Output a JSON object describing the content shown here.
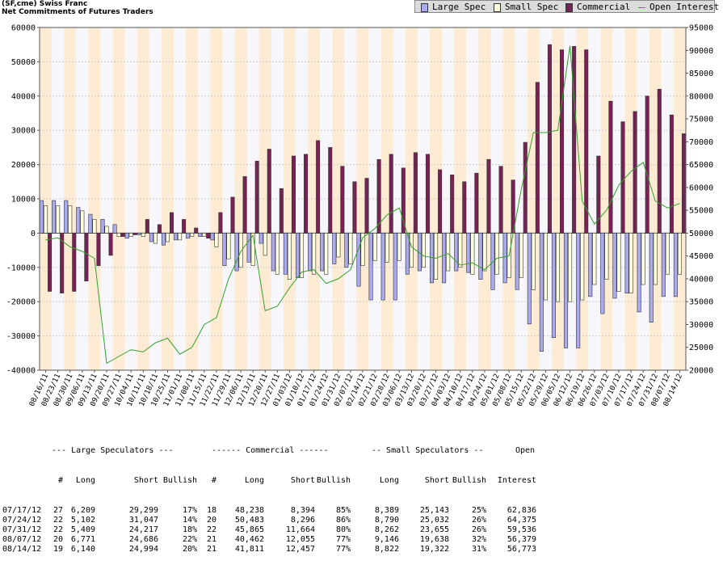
{
  "header": {
    "line1": "(SF,cme) Swiss Franc",
    "line2": "Net Commitments of Futures Traders"
  },
  "legend": [
    {
      "label": "Large Spec",
      "color": "#aaaaee",
      "kind": "bar"
    },
    {
      "label": "Small Spec",
      "color": "#ffffdd",
      "kind": "bar"
    },
    {
      "label": "Commercial",
      "color": "#772255",
      "kind": "bar"
    },
    {
      "label": "Open Interest",
      "color": "#33a02c",
      "kind": "line"
    }
  ],
  "chart_data": {
    "type": "bar",
    "categories": [
      "08/16/11",
      "08/23/11",
      "08/30/11",
      "09/06/11",
      "09/13/11",
      "09/20/11",
      "09/27/11",
      "10/04/11",
      "10/11/11",
      "10/18/11",
      "10/25/11",
      "11/01/11",
      "11/08/11",
      "11/15/11",
      "11/22/11",
      "11/29/11",
      "12/06/11",
      "12/13/11",
      "12/20/11",
      "12/27/11",
      "01/03/12",
      "01/10/12",
      "01/17/12",
      "01/24/12",
      "01/31/12",
      "02/07/12",
      "02/14/12",
      "02/21/12",
      "02/28/12",
      "03/06/12",
      "03/13/12",
      "03/20/12",
      "03/27/12",
      "04/03/12",
      "04/10/12",
      "04/17/12",
      "04/24/12",
      "05/01/12",
      "05/08/12",
      "05/15/12",
      "05/22/12",
      "05/29/12",
      "06/05/12",
      "06/12/12",
      "06/19/12",
      "06/26/12",
      "07/03/12",
      "07/10/12",
      "07/17/12",
      "07/24/12",
      "07/31/12",
      "08/07/12",
      "08/14/12"
    ],
    "x_tick_labels": [
      "08/16/11",
      "08/23/11",
      "08/30/11",
      "09/06/11",
      "09/13/11",
      "09/20/11",
      "09/27/11",
      "10/04/11",
      "10/11/11",
      "10/18/11",
      "10/25/11",
      "11/01/11",
      "11/08/11",
      "11/15/11",
      "11/22/11",
      "11/29/11",
      "12/06/11",
      "12/13/11",
      "12/20/11",
      "12/27/11",
      "01/03/12",
      "01/10/12",
      "01/17/12",
      "01/24/12",
      "01/31/12",
      "02/07/12",
      "02/14/12",
      "02/21/12",
      "02/28/12",
      "03/06/12",
      "03/13/12",
      "03/20/12",
      "03/27/12",
      "04/03/12",
      "04/10/12",
      "04/17/12",
      "04/24/12",
      "05/01/12",
      "05/08/12",
      "05/15/12",
      "05/22/12",
      "05/29/12",
      "06/05/12",
      "06/12/12",
      "06/19/12",
      "06/26/12",
      "07/03/12",
      "07/10/12",
      "07/17/12",
      "07/24/12",
      "07/31/12",
      "08/07/12",
      "08/14/12"
    ],
    "y_left_ticks": [
      "60000",
      "50000",
      "40000",
      "30000",
      "20000",
      "10000",
      "0",
      "-10000",
      "-20000",
      "-30000",
      "-40000"
    ],
    "y_right_ticks": [
      "95000",
      "90000",
      "85000",
      "80000",
      "75000",
      "70000",
      "65000",
      "60000",
      "55000",
      "50000",
      "45000",
      "40000",
      "35000",
      "30000",
      "25000",
      "20000"
    ],
    "ylim": [
      -40000,
      60000
    ],
    "y2lim": [
      20000,
      95000
    ],
    "grid": true,
    "series": [
      {
        "name": "Large Spec",
        "axis": "left",
        "values": [
          9500,
          9500,
          9500,
          7500,
          5500,
          4000,
          2500,
          -1500,
          -500,
          -2500,
          -3500,
          -2000,
          -1500,
          -1000,
          -2000,
          -9500,
          -11000,
          -8500,
          -3000,
          -11000,
          -12000,
          -13000,
          -11000,
          -11000,
          -9000,
          -10000,
          -15500,
          -19500,
          -19500,
          -19500,
          -12000,
          -11000,
          -14500,
          -14500,
          -11000,
          -11500,
          -13500,
          -16500,
          -14500,
          -16500,
          -26500,
          -34500,
          -30500,
          -33500,
          -33500,
          -18500,
          -23500,
          -19000,
          -17500,
          -23000,
          -26000,
          -18500,
          -18500
        ]
      },
      {
        "name": "Small Spec",
        "axis": "left",
        "values": [
          8000,
          8000,
          8000,
          6500,
          4000,
          2000,
          -1000,
          -1000,
          -1000,
          -3000,
          -2500,
          -2000,
          -1000,
          -1000,
          -4000,
          -7500,
          -10000,
          -9500,
          -6500,
          -12000,
          -13500,
          -13000,
          -12000,
          -12000,
          -7000,
          -9000,
          -9500,
          -8000,
          -8500,
          -8000,
          -10000,
          -10000,
          -13500,
          -11000,
          -10000,
          -12000,
          -11000,
          -12000,
          -13000,
          -13000,
          -16500,
          -19500,
          -20000,
          -20000,
          -19500,
          -15000,
          -13500,
          -17000,
          -17500,
          -15000,
          -15000,
          -12000,
          -12000
        ]
      },
      {
        "name": "Commercial",
        "axis": "left",
        "values": [
          -17000,
          -17500,
          -17000,
          -14000,
          -9500,
          -6500,
          -1000,
          -500,
          4000,
          2500,
          6000,
          4000,
          1500,
          -1500,
          6000,
          10500,
          16500,
          21000,
          24500,
          13000,
          22500,
          23000,
          27000,
          25000,
          19500,
          15000,
          16000,
          21500,
          23000,
          19000,
          23500,
          23000,
          18500,
          17000,
          15000,
          17500,
          21500,
          19500,
          15500,
          26500,
          44000,
          55000,
          53500,
          54500,
          53500,
          22500,
          38500,
          32500,
          35500,
          40000,
          42000,
          34500,
          29000
        ]
      },
      {
        "name": "Open Interest",
        "axis": "right",
        "values": [
          48500,
          49000,
          47000,
          46000,
          44500,
          21500,
          23000,
          24500,
          24000,
          26000,
          27000,
          23500,
          25000,
          30000,
          31500,
          40000,
          46000,
          49500,
          33000,
          34000,
          38000,
          41500,
          42000,
          39000,
          40000,
          42000,
          49000,
          51000,
          54000,
          55500,
          47000,
          45000,
          44500,
          45500,
          43000,
          43500,
          42000,
          44500,
          45000,
          59500,
          72000,
          72000,
          72500,
          91000,
          57000,
          52000,
          55000,
          60500,
          63500,
          65500,
          57000,
          55500,
          56500
        ]
      }
    ]
  },
  "table": {
    "groups": [
      "--- Large Speculators ---",
      "------ Commercial ------",
      "-- Small Speculators --",
      "Open"
    ],
    "columns": [
      "#",
      "Long",
      "Short",
      "Bullish",
      "#",
      "Long",
      "Short",
      "Bullish",
      "Long",
      "Short",
      "Bullish",
      "Interest"
    ],
    "rows": [
      [
        "07/17/12",
        "27",
        "6,209",
        "29,299",
        "17%",
        "18",
        "48,238",
        "8,394",
        "85%",
        "8,389",
        "25,143",
        "25%",
        "62,836"
      ],
      [
        "07/24/12",
        "22",
        "5,102",
        "31,047",
        "14%",
        "20",
        "50,483",
        "8,296",
        "86%",
        "8,790",
        "25,032",
        "26%",
        "64,375"
      ],
      [
        "07/31/12",
        "22",
        "5,409",
        "24,217",
        "18%",
        "22",
        "45,865",
        "11,664",
        "80%",
        "8,262",
        "23,655",
        "26%",
        "59,536"
      ],
      [
        "08/07/12",
        "20",
        "6,771",
        "24,686",
        "22%",
        "21",
        "40,462",
        "12,055",
        "77%",
        "9,146",
        "19,638",
        "32%",
        "56,379"
      ],
      [
        "08/14/12",
        "19",
        "6,140",
        "24,994",
        "20%",
        "21",
        "41,811",
        "12,457",
        "77%",
        "8,822",
        "19,322",
        "31%",
        "56,773"
      ]
    ]
  }
}
